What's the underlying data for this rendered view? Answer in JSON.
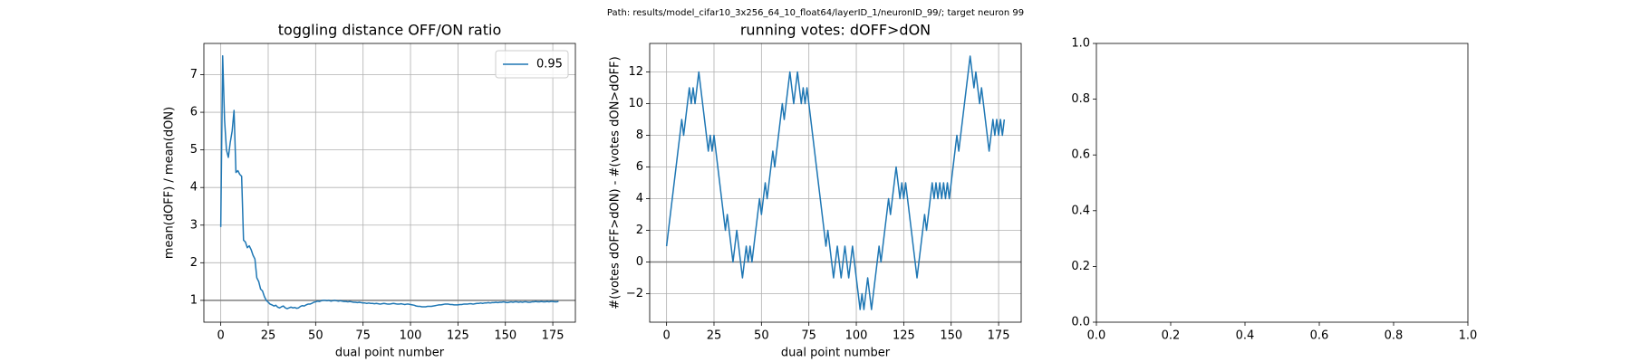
{
  "figure_title": "Path: results/model_cifar10_3x256_64_10_float64/layerID_1/neuronID_99/; target neuron 99",
  "chart_data": [
    {
      "type": "line",
      "title": "toggling distance OFF/ON ratio",
      "xlabel": "dual point number",
      "ylabel": "mean(dOFF) / mean(dON)",
      "x": [
        0,
        1,
        2,
        3,
        4,
        5,
        6,
        7,
        8,
        9,
        10,
        11,
        12,
        13,
        14,
        15,
        16,
        17,
        18,
        19,
        20,
        21,
        22,
        23,
        24,
        25,
        26,
        27,
        28,
        29,
        30,
        31,
        32,
        33,
        34,
        35,
        36,
        37,
        38,
        39,
        40,
        41,
        42,
        43,
        44,
        45,
        46,
        47,
        48,
        49,
        50,
        51,
        52,
        53,
        54,
        55,
        56,
        57,
        58,
        59,
        60,
        61,
        62,
        63,
        64,
        65,
        66,
        67,
        68,
        69,
        70,
        71,
        72,
        73,
        74,
        75,
        76,
        77,
        78,
        79,
        80,
        81,
        82,
        83,
        84,
        85,
        86,
        87,
        88,
        89,
        90,
        91,
        92,
        93,
        94,
        95,
        96,
        97,
        98,
        99,
        100,
        101,
        102,
        103,
        104,
        105,
        106,
        107,
        108,
        109,
        110,
        111,
        112,
        113,
        114,
        115,
        116,
        117,
        118,
        119,
        120,
        121,
        122,
        123,
        124,
        125,
        126,
        127,
        128,
        129,
        130,
        131,
        132,
        133,
        134,
        135,
        136,
        137,
        138,
        139,
        140,
        141,
        142,
        143,
        144,
        145,
        146,
        147,
        148,
        149,
        150,
        151,
        152,
        153,
        154,
        155,
        156,
        157,
        158,
        159,
        160,
        161,
        162,
        163,
        164,
        165,
        166,
        167,
        168,
        169,
        170,
        171,
        172,
        173,
        174,
        175,
        176,
        177,
        178
      ],
      "series": [
        {
          "name": "0.95",
          "color": "#1f77b4",
          "values": [
            2.95,
            7.5,
            5.8,
            5.0,
            4.8,
            5.2,
            5.5,
            6.05,
            4.4,
            4.45,
            4.35,
            4.3,
            2.6,
            2.55,
            2.4,
            2.45,
            2.35,
            2.2,
            2.1,
            1.6,
            1.5,
            1.3,
            1.25,
            1.1,
            1.0,
            0.95,
            0.9,
            0.88,
            0.85,
            0.87,
            0.82,
            0.8,
            0.83,
            0.85,
            0.8,
            0.78,
            0.8,
            0.82,
            0.8,
            0.81,
            0.79,
            0.8,
            0.84,
            0.86,
            0.85,
            0.88,
            0.9,
            0.9,
            0.92,
            0.95,
            0.96,
            0.98,
            0.97,
            0.99,
            1.0,
            1.0,
            0.99,
            1.0,
            0.98,
            0.99,
            1.0,
            0.99,
            0.98,
            0.99,
            0.98,
            0.97,
            0.97,
            0.96,
            0.97,
            0.96,
            0.95,
            0.95,
            0.94,
            0.95,
            0.94,
            0.93,
            0.93,
            0.92,
            0.93,
            0.92,
            0.92,
            0.91,
            0.92,
            0.91,
            0.9,
            0.91,
            0.92,
            0.91,
            0.9,
            0.9,
            0.91,
            0.92,
            0.91,
            0.9,
            0.9,
            0.91,
            0.9,
            0.89,
            0.9,
            0.9,
            0.89,
            0.88,
            0.87,
            0.85,
            0.84,
            0.84,
            0.83,
            0.83,
            0.83,
            0.84,
            0.84,
            0.84,
            0.85,
            0.86,
            0.87,
            0.88,
            0.88,
            0.89,
            0.9,
            0.9,
            0.9,
            0.89,
            0.89,
            0.88,
            0.88,
            0.88,
            0.89,
            0.89,
            0.9,
            0.9,
            0.9,
            0.91,
            0.91,
            0.9,
            0.91,
            0.92,
            0.92,
            0.93,
            0.92,
            0.93,
            0.93,
            0.94,
            0.93,
            0.94,
            0.94,
            0.95,
            0.94,
            0.95,
            0.95,
            0.96,
            0.95,
            0.94,
            0.95,
            0.96,
            0.95,
            0.96,
            0.96,
            0.95,
            0.96,
            0.95,
            0.96,
            0.96,
            0.95,
            0.95,
            0.96,
            0.96,
            0.97,
            0.96,
            0.96,
            0.97,
            0.96,
            0.96,
            0.97,
            0.96,
            0.97,
            0.97,
            0.96,
            0.96,
            0.97
          ]
        }
      ],
      "hline": 1,
      "hline_color": "#808080",
      "xlim": [
        -8.9,
        186.9
      ],
      "xticks": [
        0,
        25,
        50,
        75,
        100,
        125,
        150,
        175
      ],
      "ylim": [
        0.42,
        7.83
      ],
      "yticks": [
        1,
        2,
        3,
        4,
        5,
        6,
        7
      ],
      "grid": true,
      "legend": "upper right"
    },
    {
      "type": "line",
      "title": "running votes: dOFF>dON",
      "xlabel": "dual point number",
      "ylabel": "#(votes dOFF>dON) - #(votes dON>dOFF)",
      "x": [
        0,
        1,
        2,
        3,
        4,
        5,
        6,
        7,
        8,
        9,
        10,
        11,
        12,
        13,
        14,
        15,
        16,
        17,
        18,
        19,
        20,
        21,
        22,
        23,
        24,
        25,
        26,
        27,
        28,
        29,
        30,
        31,
        32,
        33,
        34,
        35,
        36,
        37,
        38,
        39,
        40,
        41,
        42,
        43,
        44,
        45,
        46,
        47,
        48,
        49,
        50,
        51,
        52,
        53,
        54,
        55,
        56,
        57,
        58,
        59,
        60,
        61,
        62,
        63,
        64,
        65,
        66,
        67,
        68,
        69,
        70,
        71,
        72,
        73,
        74,
        75,
        76,
        77,
        78,
        79,
        80,
        81,
        82,
        83,
        84,
        85,
        86,
        87,
        88,
        89,
        90,
        91,
        92,
        93,
        94,
        95,
        96,
        97,
        98,
        99,
        100,
        101,
        102,
        103,
        104,
        105,
        106,
        107,
        108,
        109,
        110,
        111,
        112,
        113,
        114,
        115,
        116,
        117,
        118,
        119,
        120,
        121,
        122,
        123,
        124,
        125,
        126,
        127,
        128,
        129,
        130,
        131,
        132,
        133,
        134,
        135,
        136,
        137,
        138,
        139,
        140,
        141,
        142,
        143,
        144,
        145,
        146,
        147,
        148,
        149,
        150,
        151,
        152,
        153,
        154,
        155,
        156,
        157,
        158,
        159,
        160,
        161,
        162,
        163,
        164,
        165,
        166,
        167,
        168,
        169,
        170,
        171,
        172,
        173,
        174,
        175,
        176,
        177,
        178
      ],
      "series": [
        {
          "color": "#1f77b4",
          "values": [
            1,
            2,
            3,
            4,
            5,
            6,
            7,
            8,
            9,
            8,
            9,
            10,
            11,
            10,
            11,
            10,
            11,
            12,
            11,
            10,
            9,
            8,
            7,
            8,
            7,
            8,
            7,
            6,
            5,
            4,
            3,
            2,
            3,
            2,
            1,
            0,
            1,
            2,
            1,
            0,
            -1,
            0,
            1,
            0,
            1,
            0,
            1,
            2,
            3,
            4,
            3,
            4,
            5,
            4,
            5,
            6,
            7,
            6,
            7,
            8,
            9,
            10,
            9,
            10,
            11,
            12,
            11,
            10,
            11,
            12,
            11,
            10,
            11,
            10,
            11,
            10,
            9,
            8,
            7,
            6,
            5,
            4,
            3,
            2,
            1,
            2,
            1,
            0,
            -1,
            0,
            1,
            0,
            -1,
            0,
            1,
            0,
            -1,
            0,
            1,
            0,
            -1,
            -2,
            -3,
            -2,
            -3,
            -2,
            -1,
            -2,
            -3,
            -2,
            -1,
            0,
            1,
            0,
            1,
            2,
            3,
            4,
            3,
            4,
            5,
            6,
            5,
            4,
            5,
            4,
            5,
            4,
            3,
            2,
            1,
            0,
            -1,
            0,
            1,
            2,
            3,
            2,
            3,
            4,
            5,
            4,
            5,
            4,
            5,
            4,
            5,
            4,
            5,
            4,
            5,
            6,
            7,
            8,
            7,
            8,
            9,
            10,
            11,
            12,
            13,
            12,
            11,
            12,
            11,
            10,
            11,
            10,
            9,
            8,
            7,
            8,
            9,
            8,
            9,
            8,
            9,
            8,
            9
          ]
        }
      ],
      "hline": 0,
      "hline_color": "#808080",
      "xlim": [
        -8.9,
        186.9
      ],
      "xticks": [
        0,
        25,
        50,
        75,
        100,
        125,
        150,
        175
      ],
      "ylim": [
        -3.8,
        13.8
      ],
      "yticks": [
        {
          "value": -2,
          "label": "−2"
        },
        0,
        2,
        4,
        6,
        8,
        10,
        12
      ],
      "grid": true
    },
    {
      "type": "line",
      "xlim": [
        0,
        1
      ],
      "xticks": [
        {
          "value": 0,
          "label": "0.0"
        },
        {
          "value": 0.2,
          "label": "0.2"
        },
        {
          "value": 0.4,
          "label": "0.4"
        },
        {
          "value": 0.6,
          "label": "0.6"
        },
        {
          "value": 0.8,
          "label": "0.8"
        },
        {
          "value": 1,
          "label": "1.0"
        }
      ],
      "ylim": [
        0,
        1
      ],
      "yticks": [
        {
          "value": 0,
          "label": "0.0"
        },
        {
          "value": 0.2,
          "label": "0.2"
        },
        {
          "value": 0.4,
          "label": "0.4"
        },
        {
          "value": 0.6,
          "label": "0.6"
        },
        {
          "value": 0.8,
          "label": "0.8"
        },
        {
          "value": 1,
          "label": "1.0"
        }
      ],
      "grid": false
    }
  ]
}
